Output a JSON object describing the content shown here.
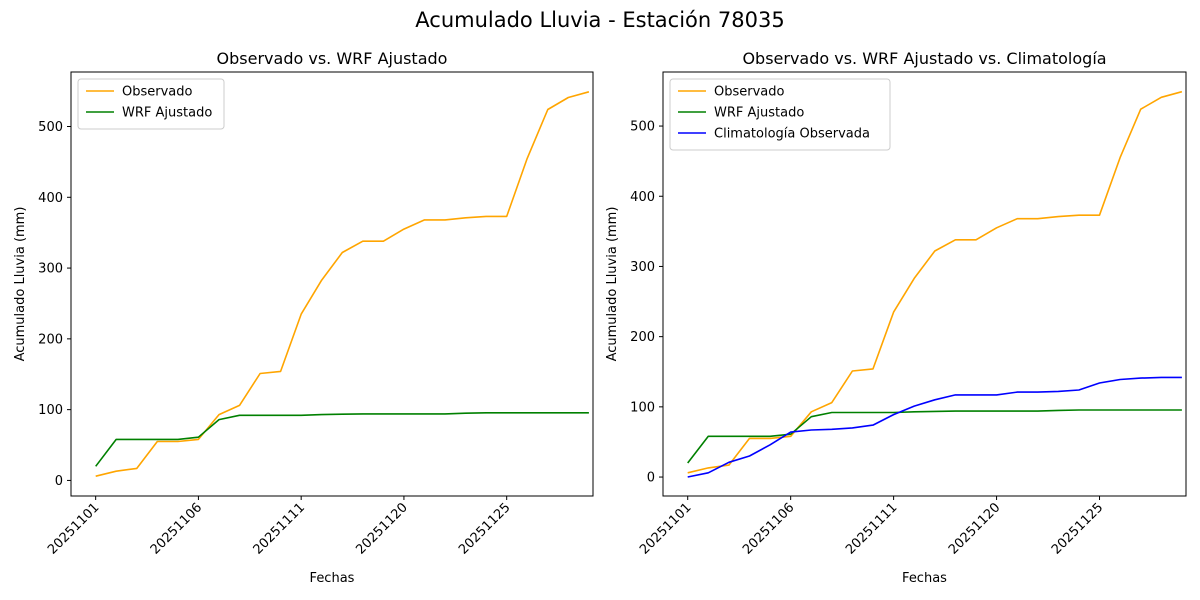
{
  "figure": {
    "suptitle": "Acumulado Lluvia - Estación 78035"
  },
  "chart_data": [
    {
      "type": "line",
      "title": "Observado vs. WRF Ajustado",
      "xlabel": "Fechas",
      "ylabel": "Acumulado Lluvia (mm)",
      "ylim": [
        -22,
        577
      ],
      "yticks": [
        0,
        100,
        200,
        300,
        400,
        500
      ],
      "xlim": [
        -1.2,
        24.2
      ],
      "xticks": [
        {
          "index": 0,
          "label": "20251101"
        },
        {
          "index": 5,
          "label": "20251106"
        },
        {
          "index": 10,
          "label": "20251111"
        },
        {
          "index": 15,
          "label": "20251120"
        },
        {
          "index": 20,
          "label": "20251125"
        }
      ],
      "legend": "top-left",
      "grid": false,
      "series": [
        {
          "name": "Observado",
          "color": "#ffa500",
          "values": [
            6,
            13,
            17,
            55,
            55,
            58,
            93,
            106,
            151,
            154,
            235,
            283,
            322,
            338,
            338,
            355,
            368,
            368,
            371,
            373,
            373,
            455,
            524,
            541,
            549
          ]
        },
        {
          "name": "WRF Ajustado",
          "color": "#008000",
          "values": [
            20,
            58,
            58,
            58,
            58,
            61,
            86,
            92,
            92,
            92,
            92,
            93,
            93.5,
            94,
            94,
            94,
            94,
            94,
            95,
            95.5,
            95.5,
            95.5,
            95.5,
            95.5,
            95.5
          ]
        }
      ]
    },
    {
      "type": "line",
      "title": "Observado vs. WRF Ajustado vs. Climatología",
      "xlabel": "Fechas",
      "ylabel": "Acumulado Lluvia (mm)",
      "ylim": [
        -27,
        577
      ],
      "yticks": [
        0,
        100,
        200,
        300,
        400,
        500
      ],
      "xlim": [
        -1.2,
        24.2
      ],
      "xticks": [
        {
          "index": 0,
          "label": "20251101"
        },
        {
          "index": 5,
          "label": "20251106"
        },
        {
          "index": 10,
          "label": "20251111"
        },
        {
          "index": 15,
          "label": "20251120"
        },
        {
          "index": 20,
          "label": "20251125"
        }
      ],
      "legend": "top-left",
      "grid": false,
      "series": [
        {
          "name": "Observado",
          "color": "#ffa500",
          "values": [
            6,
            13,
            17,
            55,
            55,
            58,
            93,
            106,
            151,
            154,
            235,
            283,
            322,
            338,
            338,
            355,
            368,
            368,
            371,
            373,
            373,
            455,
            524,
            541,
            549
          ]
        },
        {
          "name": "WRF Ajustado",
          "color": "#008000",
          "values": [
            20,
            58,
            58,
            58,
            58,
            61,
            86,
            92,
            92,
            92,
            92,
            93,
            93.5,
            94,
            94,
            94,
            94,
            94,
            95,
            95.5,
            95.5,
            95.5,
            95.5,
            95.5,
            95.5
          ]
        },
        {
          "name": "Climatología Observada",
          "color": "#0000ff",
          "values": [
            0,
            6,
            21,
            30,
            46,
            64,
            67,
            68,
            70,
            74,
            89,
            101,
            110,
            117,
            117,
            117,
            121,
            121,
            122,
            124,
            134,
            139,
            141,
            142,
            142
          ]
        }
      ]
    }
  ]
}
